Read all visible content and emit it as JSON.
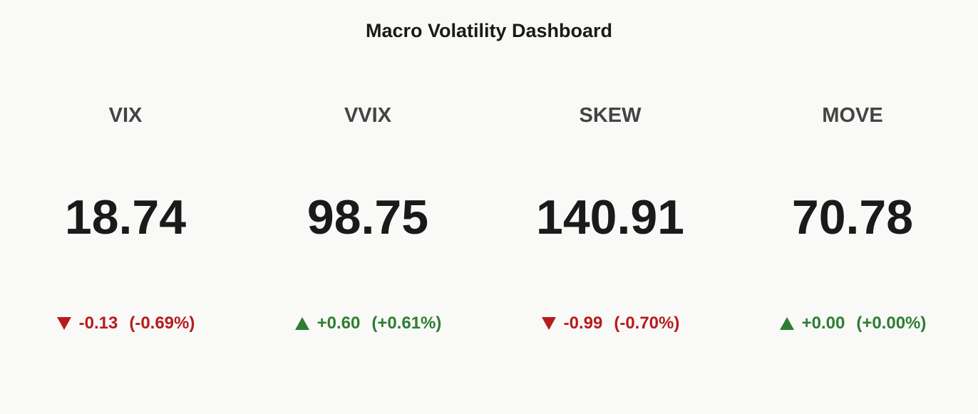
{
  "header": {
    "title": "Macro Volatility Dashboard"
  },
  "cards": [
    {
      "label": "VIX",
      "value": 18.74,
      "change": "-0.13",
      "pct": "(-0.69%)",
      "direction": "down",
      "color": "#b71c1c"
    },
    {
      "label": "VVIX",
      "value": 98.75,
      "change": "+0.60",
      "pct": "(+0.61%)",
      "direction": "up",
      "color": "#2e7d32"
    },
    {
      "label": "SKEW",
      "value": 140.91,
      "change": "-0.99",
      "pct": "(-0.70%)",
      "direction": "down",
      "color": "#b71c1c"
    },
    {
      "label": "MOVE",
      "value": 70.78,
      "change": "+0.00",
      "pct": "(+0.00%)",
      "direction": "up",
      "color": "#2e7d32"
    }
  ]
}
